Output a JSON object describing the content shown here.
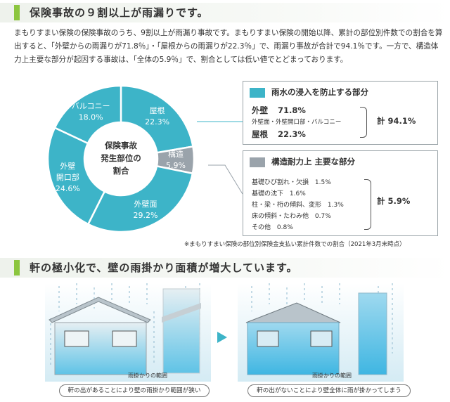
{
  "section1": {
    "heading": "保険事故の９割以上が雨漏りです。",
    "intro": "まもりすまい保険の保険事故のうち、9割以上が雨漏り事故です。まもりすまい保険の開始以降、累計の部位別件数での割合を算出すると、「外壁からの雨漏りが71.8％」・「屋根からの雨漏りが22.3％」で、雨漏り事故が合計で94.1％です。一方で、構造体力上主要な部分が起因する事故は、「全体の5.9％」で、割合としては低い値でとどまっております。"
  },
  "chart_data": {
    "type": "pie",
    "style": "donut",
    "center_label": [
      "保険事故",
      "発生部位の",
      "割合"
    ],
    "slices": [
      {
        "label": "屋根",
        "value": 22.3,
        "value_label": "22.3%",
        "group": "water"
      },
      {
        "label": "構造",
        "value": 5.9,
        "value_label": "5.9%",
        "group": "structure"
      },
      {
        "label": "外壁面",
        "value": 29.2,
        "value_label": "29.2%",
        "group": "water"
      },
      {
        "label": "外壁開口部",
        "label_lines": [
          "外壁",
          "開口部"
        ],
        "value": 24.6,
        "value_label": "24.6%",
        "group": "water"
      },
      {
        "label": "バルコニー",
        "value": 18.0,
        "value_label": "18.0%",
        "group": "water"
      }
    ],
    "colors": {
      "water": "#3db4c8",
      "structure": "#9aa3ab"
    }
  },
  "legend": {
    "water": {
      "title": "雨水の浸入を防止する部分",
      "color": "#3db4c8",
      "item1_label": "外壁",
      "item1_value": "71.8%",
      "item1_note": "外壁面・外壁開口部・バルコニー",
      "item2_label": "屋根",
      "item2_value": "22.3%",
      "total": "計 94.1%"
    },
    "structure": {
      "title": "構造耐力上 主要な部分",
      "color": "#9aa3ab",
      "items": [
        {
          "label": "基礎ひび割れ・欠損",
          "value": "1.5%"
        },
        {
          "label": "基礎の沈下",
          "value": "1.6%"
        },
        {
          "label": "柱・梁・桁の傾斜、変形",
          "value": "1.3%"
        },
        {
          "label": "床の傾斜・たわみ他",
          "value": "0.7%"
        },
        {
          "label": "その他",
          "value": "0.8%"
        }
      ],
      "total": "計 5.9%"
    }
  },
  "footnote": "※まもりすまい保険の部位別保険金支払い累計件数での割合（2021年3月末時点）",
  "section2": {
    "heading": "軒の極小化で、壁の雨掛かり面積が増大しています。",
    "left_rain_label": "雨掛かりの範囲",
    "right_rain_label": "雨掛かりの範囲",
    "left_caption": "軒の出があることにより壁の雨掛かり範囲が狭い",
    "right_caption": "軒の出がないことにより壁全体に雨が掛かってしまう"
  }
}
